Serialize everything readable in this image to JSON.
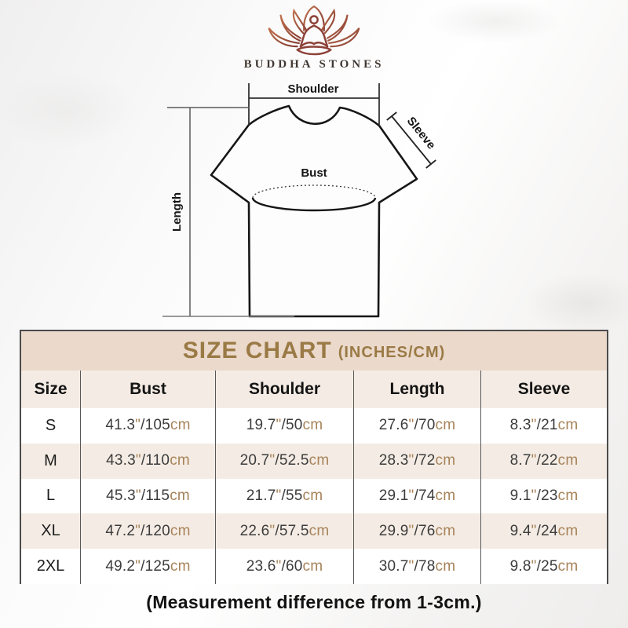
{
  "brand": {
    "name": "BUDDHA STONES",
    "logo_icon": "lotus-meditation-icon"
  },
  "diagram": {
    "labels": {
      "shoulder": "Shoulder",
      "sleeve": "Sleeve",
      "bust": "Bust",
      "length": "Length"
    }
  },
  "size_chart": {
    "title": "SIZE CHART",
    "title_suffix": "(INCHES/CM)",
    "columns": [
      "Size",
      "Bust",
      "Shoulder",
      "Length",
      "Sleeve"
    ]
  },
  "chart_data": {
    "type": "table",
    "title": "SIZE CHART (INCHES/CM)",
    "columns": [
      "Size",
      "Bust",
      "Shoulder",
      "Length",
      "Sleeve"
    ],
    "rows": [
      {
        "size": "S",
        "cells": [
          {
            "in": "41.3",
            "cm": "105"
          },
          {
            "in": "19.7",
            "cm": "50"
          },
          {
            "in": "27.6",
            "cm": "70"
          },
          {
            "in": "8.3",
            "cm": "21"
          }
        ]
      },
      {
        "size": "M",
        "cells": [
          {
            "in": "43.3",
            "cm": "110"
          },
          {
            "in": "20.7",
            "cm": "52.5"
          },
          {
            "in": "28.3",
            "cm": "72"
          },
          {
            "in": "8.7",
            "cm": "22"
          }
        ]
      },
      {
        "size": "L",
        "cells": [
          {
            "in": "45.3",
            "cm": "115"
          },
          {
            "in": "21.7",
            "cm": "55"
          },
          {
            "in": "29.1",
            "cm": "74"
          },
          {
            "in": "9.1",
            "cm": "23"
          }
        ]
      },
      {
        "size": "XL",
        "cells": [
          {
            "in": "47.2",
            "cm": "120"
          },
          {
            "in": "22.6",
            "cm": "57.5"
          },
          {
            "in": "29.9",
            "cm": "76"
          },
          {
            "in": "9.4",
            "cm": "24"
          }
        ]
      },
      {
        "size": "2XL",
        "cells": [
          {
            "in": "49.2",
            "cm": "125"
          },
          {
            "in": "23.6",
            "cm": "60"
          },
          {
            "in": "30.7",
            "cm": "78"
          },
          {
            "in": "9.8",
            "cm": "25"
          }
        ]
      }
    ]
  },
  "footer": {
    "note": "(Measurement difference from 1-3cm.)"
  },
  "colors": {
    "title_gold": "#9a7a45",
    "band_beige": "#ebd9cc",
    "row_beige": "#f4ece4",
    "unit_tan": "#a7835a",
    "logo_gradient_start": "#c0714d",
    "logo_gradient_end": "#833a30",
    "outline_dark": "#161616"
  }
}
